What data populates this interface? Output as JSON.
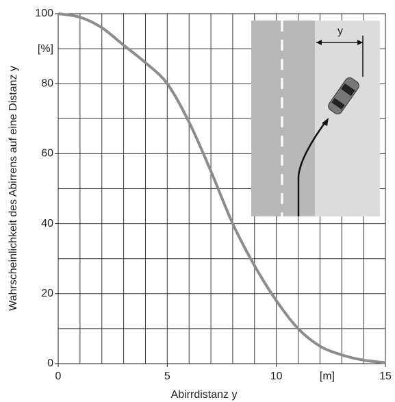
{
  "chart_data": {
    "type": "line",
    "x_label": "Abirrdistanz y",
    "y_label": "Wahrscheinlichkeit des Abirrens auf eine Distanz y",
    "x_unit_label": "[m]",
    "y_unit_label": "[%]",
    "inset_label": "y",
    "x": [
      0,
      1,
      2,
      3,
      4,
      5,
      6,
      7,
      8,
      9,
      10,
      11,
      12,
      13,
      14,
      15
    ],
    "series": [
      {
        "color": "#8c8c8c",
        "values": [
          100,
          99,
          96,
          91,
          86,
          80,
          69,
          55,
          40,
          28,
          18,
          10,
          5,
          2.5,
          1,
          0.3
        ]
      }
    ],
    "xlim": [
      0,
      15
    ],
    "ylim": [
      0,
      100
    ],
    "xticks": [
      0,
      5,
      10,
      15
    ],
    "yticks": [
      0,
      20,
      40,
      60,
      80,
      100
    ],
    "xgrid": [
      0,
      1,
      2,
      3,
      4,
      5,
      6,
      7,
      8,
      9,
      10,
      11,
      12,
      13,
      14,
      15
    ],
    "ygrid": [
      0,
      10,
      20,
      30,
      40,
      50,
      60,
      70,
      80,
      90,
      100
    ],
    "grid": true
  }
}
